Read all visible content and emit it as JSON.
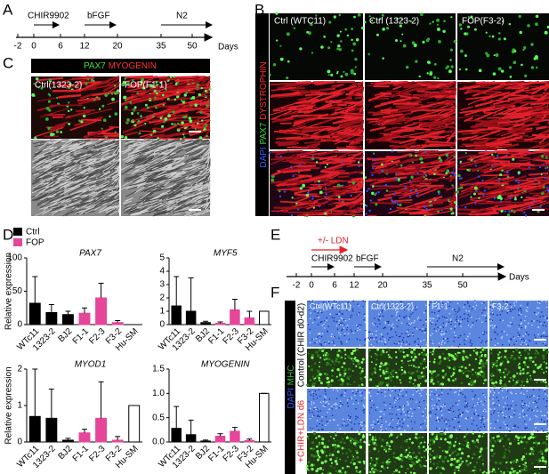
{
  "panels": {
    "A": {
      "letter": "A",
      "steps": [
        "CHIR9902",
        "bFGF",
        "N2"
      ],
      "ticks": [
        -2,
        0,
        6,
        12,
        20,
        35,
        50
      ],
      "unit": "Days"
    },
    "B": {
      "letter": "B",
      "columns": [
        "Ctrl (WTC11)",
        "Ctrl (1323-2)",
        "FOP(F3-2)"
      ],
      "stain": [
        "DAPI",
        "PAX7",
        "DYSTROPHIN"
      ]
    },
    "C": {
      "letter": "C",
      "stain": [
        "PAX7",
        "MYOGENIN"
      ],
      "columns": [
        "Ctrl(1323-2)",
        "FOP(F1-1)"
      ]
    },
    "D": {
      "letter": "D"
    },
    "E": {
      "letter": "E",
      "treatment": "+/- LDN",
      "steps": [
        "CHIR9902",
        "bFGF",
        "N2"
      ],
      "ticks": [
        -2,
        0,
        6,
        12,
        20,
        35,
        50
      ],
      "unit": "Days"
    },
    "F": {
      "letter": "F",
      "columns": [
        "Ctrl(WTc11)",
        "Ctrl(1323-2)",
        "F1-1",
        "F3-2"
      ],
      "stain": [
        "DAPI",
        "MHC"
      ],
      "rows": [
        "Control (CHIR d0-d2)",
        "+CHIR+LDN d6"
      ]
    }
  },
  "chart_data": [
    {
      "type": "bar",
      "title": "PAX7",
      "ylabel": "Relative expression",
      "legend": [
        {
          "name": "Ctrl",
          "color": "#000000"
        },
        {
          "name": "FOP",
          "color": "#e6469a"
        }
      ],
      "categories": [
        "WTc11",
        "1323-2",
        "BJ2",
        "F1-1",
        "F2-3",
        "F3-2",
        "Hu-SM"
      ],
      "values": [
        32,
        18,
        15,
        17,
        40,
        3,
        0
      ],
      "errors": [
        40,
        12,
        5,
        8,
        22,
        3,
        0
      ],
      "colors": [
        "#000000",
        "#000000",
        "#000000",
        "#e6469a",
        "#e6469a",
        "#e6469a",
        "#ffffff"
      ],
      "ylim": [
        0,
        100
      ],
      "yticks": [
        0,
        50,
        100
      ]
    },
    {
      "type": "bar",
      "title": "MYF5",
      "categories": [
        "WTc11",
        "1323-2",
        "BJ2",
        "F1-1",
        "F2-3",
        "F3-2",
        "Hu-SM"
      ],
      "values": [
        1.4,
        1.0,
        0.15,
        0.1,
        1.1,
        0.5,
        1.0
      ],
      "errors": [
        2.2,
        2.5,
        0.1,
        0.1,
        0.8,
        0.5,
        0
      ],
      "colors": [
        "#000000",
        "#000000",
        "#000000",
        "#e6469a",
        "#e6469a",
        "#e6469a",
        "#ffffff"
      ],
      "ylim": [
        0,
        5
      ],
      "yticks": [
        0,
        1,
        2,
        3,
        4,
        5
      ]
    },
    {
      "type": "bar",
      "title": "MYOD1",
      "ylabel": "Relative expression",
      "categories": [
        "WTc11",
        "1323-2",
        "BJ2",
        "F1-1",
        "F2-3",
        "F3-2",
        "Hu-SM"
      ],
      "values": [
        0.7,
        0.65,
        0.05,
        0.25,
        0.65,
        0.05,
        1.0
      ],
      "errors": [
        1.3,
        0.8,
        0.05,
        0.1,
        1.0,
        0.1,
        0
      ],
      "colors": [
        "#000000",
        "#000000",
        "#000000",
        "#e6469a",
        "#e6469a",
        "#e6469a",
        "#ffffff"
      ],
      "ylim": [
        0,
        2
      ],
      "yticks": [
        0,
        1,
        2
      ]
    },
    {
      "type": "bar",
      "title": "MYOGENIN",
      "categories": [
        "WTc11",
        "1323-2",
        "BJ2",
        "F1-1",
        "F2-3",
        "F3-2",
        "Hu-SM"
      ],
      "values": [
        0.28,
        0.15,
        0.02,
        0.12,
        0.22,
        0.03,
        1.0
      ],
      "errors": [
        0.45,
        0.3,
        0.02,
        0.05,
        0.08,
        0.03,
        0
      ],
      "colors": [
        "#000000",
        "#000000",
        "#000000",
        "#e6469a",
        "#e6469a",
        "#e6469a",
        "#ffffff"
      ],
      "ylim": [
        0,
        1.5
      ],
      "yticks": [
        {
          "value": 0,
          "label": "0.0"
        },
        0.5,
        {
          "value": 1,
          "label": "1.0"
        },
        1.5
      ]
    }
  ]
}
